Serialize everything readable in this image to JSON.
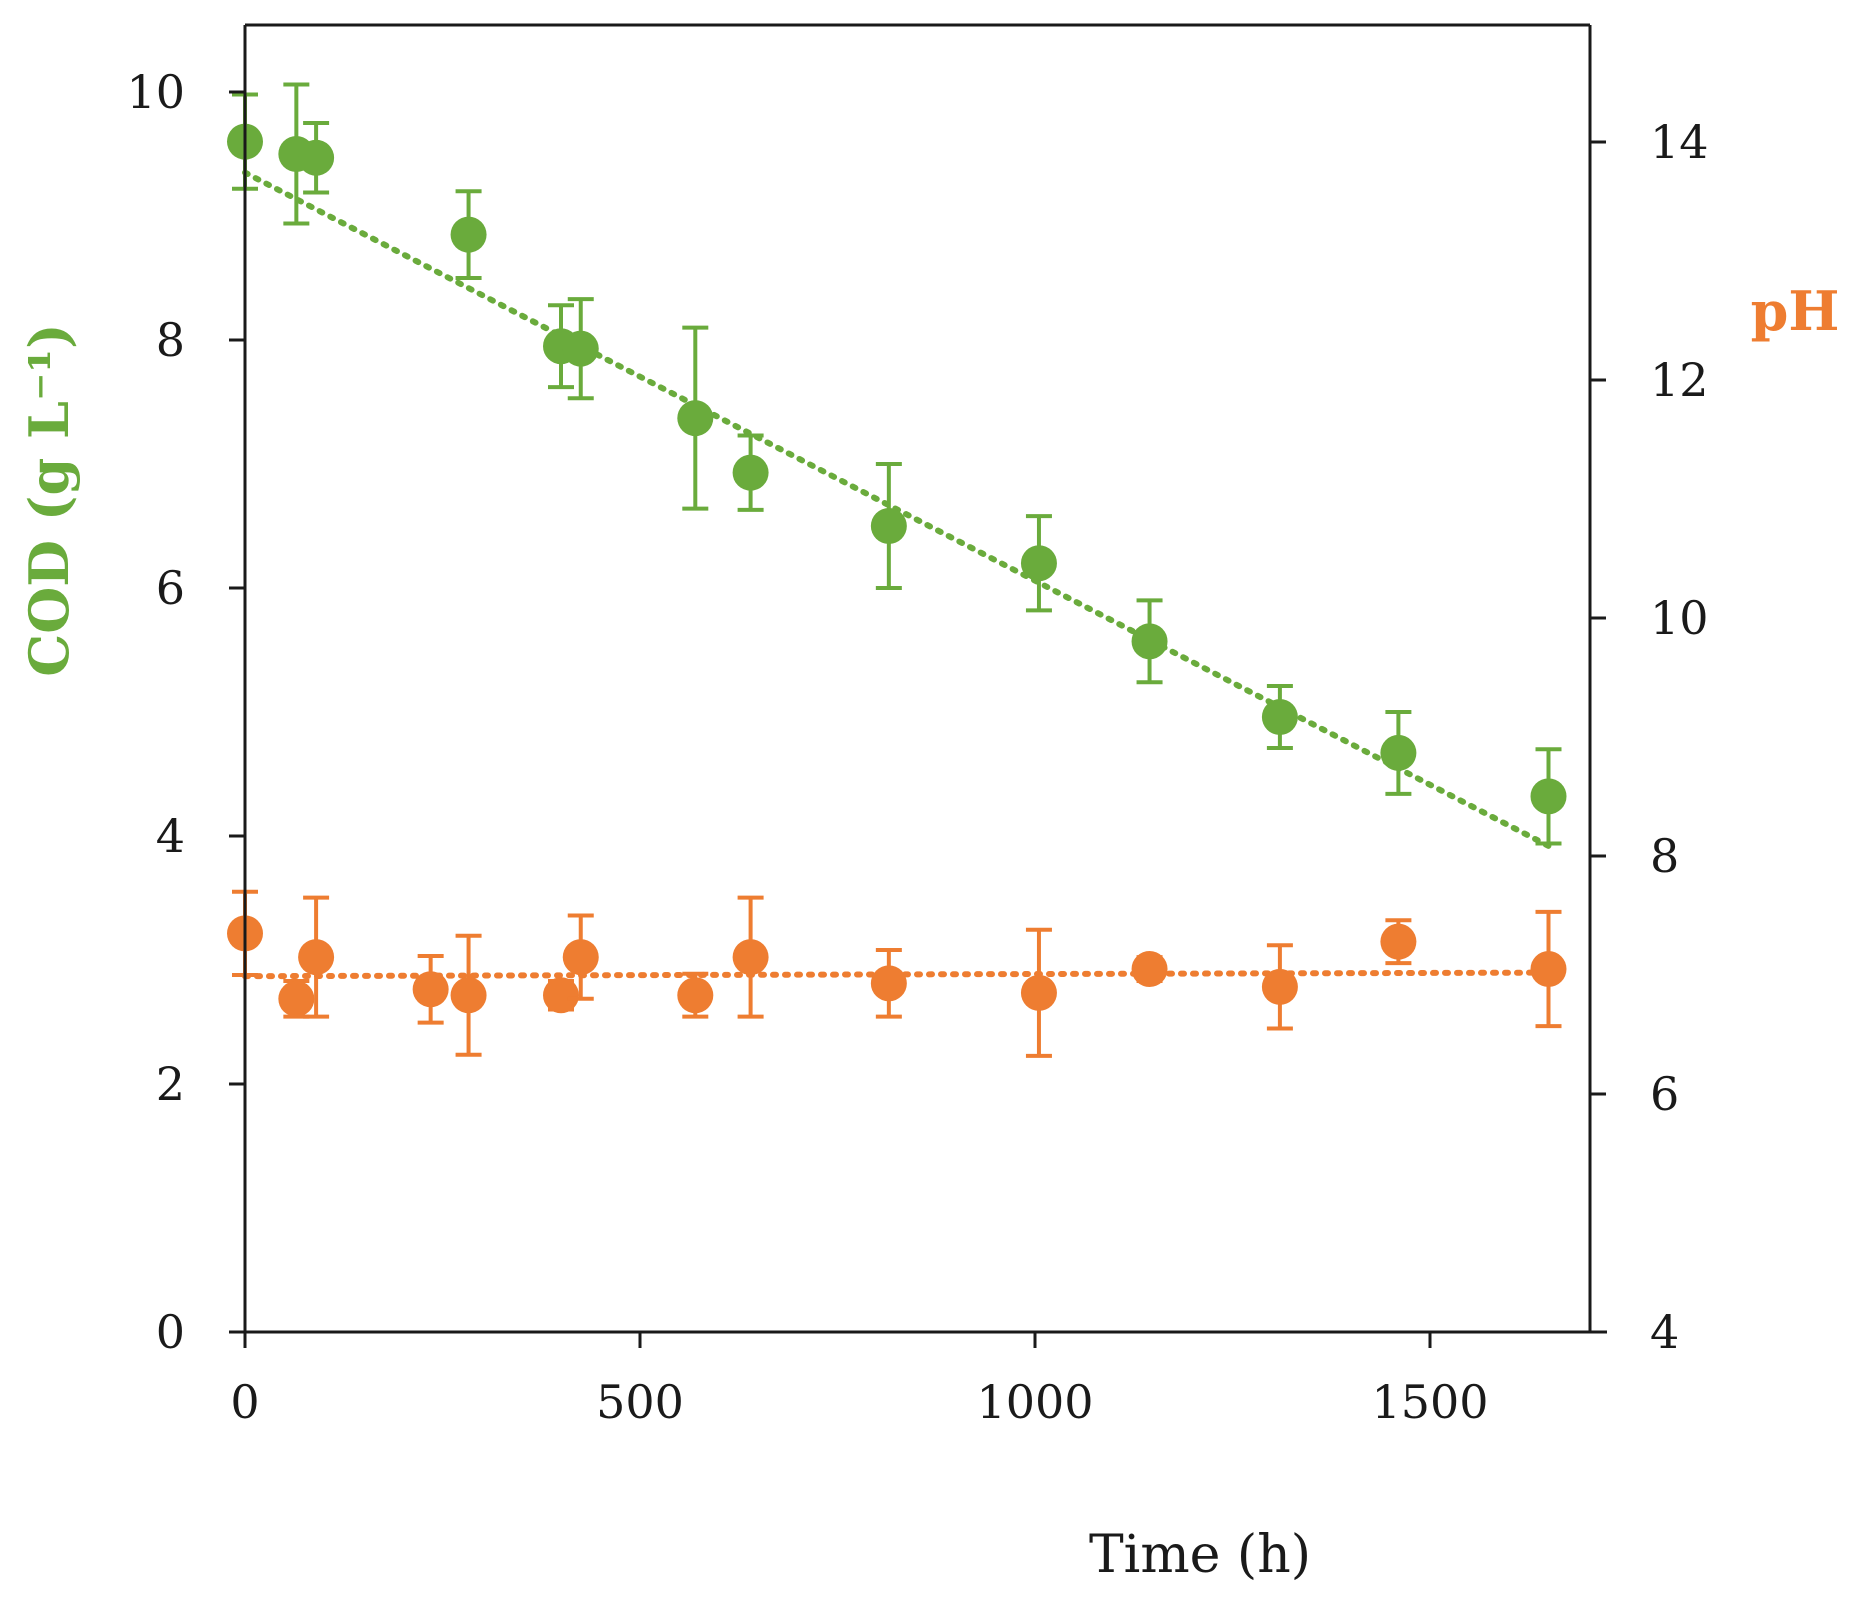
{
  "chart_data": {
    "type": "scatter",
    "title": "",
    "xlabel": "Time (h)",
    "ylabel_left": "COD (g L⁻¹)",
    "ylabel_right": "pH",
    "xlim": [
      0,
      1700
    ],
    "ylim_left": [
      0,
      10.5
    ],
    "ylim_right": [
      4,
      15
    ],
    "x_ticks": [
      0,
      500,
      1000,
      1500
    ],
    "x_tick_labels": [
      "0",
      "500",
      "1000",
      "1500"
    ],
    "y_ticks_left": [
      0,
      2,
      4,
      6,
      8,
      10
    ],
    "y_tick_labels_left": [
      "0",
      "2",
      "4",
      "6",
      "8",
      "10"
    ],
    "y_ticks_right": [
      4,
      6,
      8,
      10,
      12,
      14
    ],
    "y_tick_labels_right": [
      "4",
      "6",
      "8",
      "10",
      "12",
      "14"
    ],
    "grid": false,
    "colors": {
      "cod": "#6aab3c",
      "ph": "#ee7d31",
      "axis": "#1a1a1a"
    },
    "series": [
      {
        "name": "COD",
        "axis": "left",
        "x": [
          0,
          65,
          90,
          283,
          400,
          425,
          570,
          640,
          815,
          1005,
          1145,
          1310,
          1460,
          1650
        ],
        "y": [
          9.6,
          9.5,
          9.47,
          8.85,
          7.95,
          7.93,
          7.37,
          6.93,
          6.5,
          6.2,
          5.57,
          4.96,
          4.67,
          4.32
        ],
        "error": [
          0.38,
          0.56,
          0.28,
          0.35,
          0.33,
          0.4,
          0.73,
          0.3,
          0.5,
          0.38,
          0.33,
          0.25,
          0.33,
          0.38
        ]
      },
      {
        "name": "pH",
        "axis": "right",
        "x": [
          0,
          65,
          90,
          235,
          283,
          400,
          425,
          570,
          640,
          815,
          1005,
          1145,
          1310,
          1460,
          1650
        ],
        "y": [
          7.35,
          6.8,
          7.15,
          6.88,
          6.83,
          6.83,
          7.15,
          6.83,
          7.15,
          6.93,
          6.85,
          7.05,
          6.9,
          7.28,
          7.05
        ],
        "error": [
          0.35,
          0.15,
          0.5,
          0.28,
          0.5,
          0.12,
          0.35,
          0.18,
          0.5,
          0.28,
          0.53,
          0.1,
          0.35,
          0.18,
          0.48
        ]
      }
    ],
    "trendlines": [
      {
        "series": "COD",
        "axis": "left",
        "style": "dotted",
        "x": [
          0,
          1650
        ],
        "y": [
          9.35,
          3.92
        ]
      },
      {
        "series": "pH",
        "axis": "right",
        "style": "dotted",
        "x": [
          0,
          1650
        ],
        "y": [
          6.99,
          7.02
        ]
      }
    ]
  }
}
